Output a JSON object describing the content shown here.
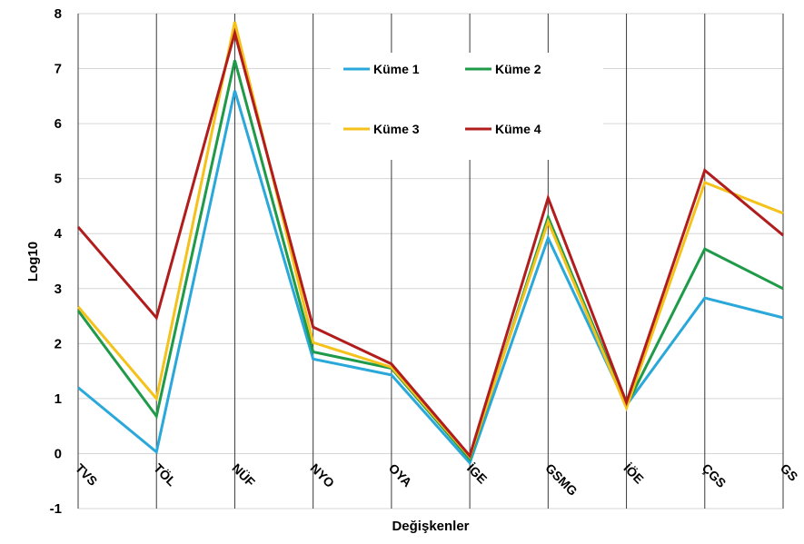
{
  "chart_data": {
    "type": "line",
    "xlabel": "Değişkenler",
    "ylabel": "Log10",
    "ylim": [
      -1,
      8
    ],
    "yticks": [
      "8",
      "7",
      "6",
      "5",
      "4",
      "3",
      "2",
      "1",
      "0",
      "-1"
    ],
    "grid": true,
    "legend_position": "top-center",
    "categories": [
      "TVS",
      "TÖL",
      "NÜF",
      "NYO",
      "OYA",
      "İGE",
      "GSMG",
      "İÖE",
      "ÇGS",
      "GS"
    ],
    "series": [
      {
        "name": "Küme 1",
        "color": "#2aa8d9",
        "values": [
          1.2,
          0.03,
          6.6,
          1.72,
          1.43,
          -0.17,
          3.92,
          0.88,
          2.83,
          2.47
        ]
      },
      {
        "name": "Küme 2",
        "color": "#1e9a48",
        "values": [
          2.6,
          0.68,
          7.15,
          1.85,
          1.55,
          -0.1,
          4.3,
          0.87,
          3.72,
          3.0
        ]
      },
      {
        "name": "Küme 3",
        "color": "#f4c21a",
        "values": [
          2.67,
          1.0,
          7.85,
          2.02,
          1.57,
          -0.06,
          4.22,
          0.83,
          4.93,
          4.37
        ]
      },
      {
        "name": "Küme 4",
        "color": "#b11d1d",
        "values": [
          4.12,
          2.47,
          7.65,
          2.3,
          1.63,
          -0.04,
          4.65,
          0.93,
          5.15,
          3.97
        ]
      }
    ]
  }
}
